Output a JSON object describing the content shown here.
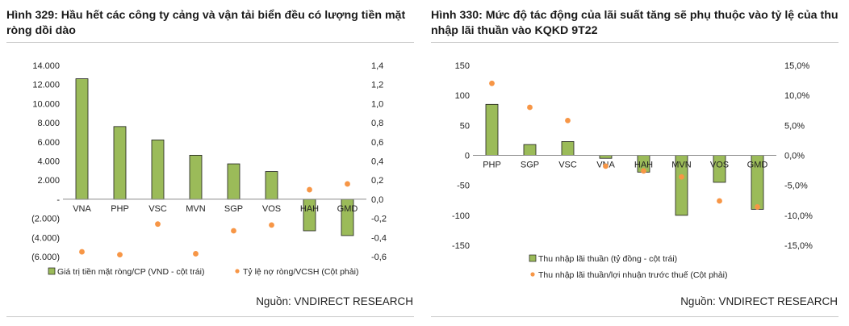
{
  "colors": {
    "bar_fill": "#9bbb59",
    "bar_stroke": "#1e1e1e",
    "dot": "#f79646",
    "axis": "#8c8c8c",
    "text": "#222222"
  },
  "figures": {
    "left": {
      "title": "Hình 329: Hầu hết các công ty cảng và vận tải biển đều có lượng tiền mặt ròng dồi dào",
      "source": "Nguồn: VNDIRECT RESEARCH"
    },
    "right": {
      "title": "Hình 330: Mức độ tác động của lãi suất tăng sẽ phụ thuộc vào tỷ lệ của thu nhập lãi thuần vào KQKD 9T22",
      "source": "Nguồn: VNDIRECT RESEARCH"
    }
  },
  "chart_data": [
    {
      "type": "bar",
      "categories": [
        "VNA",
        "PHP",
        "VSC",
        "MVN",
        "SGP",
        "VOS",
        "HAH",
        "GMD"
      ],
      "series": [
        {
          "name": "Giá trị tiền mặt ròng/CP (VND - cột trái)",
          "kind": "bar",
          "axis": "left",
          "values": [
            12600,
            7600,
            6200,
            4600,
            3700,
            2900,
            -3300,
            -3800
          ]
        },
        {
          "name": "Tỷ lệ nợ ròng/VCSH (Cột phải)",
          "kind": "dot",
          "axis": "right",
          "values": [
            -0.55,
            -0.58,
            -0.26,
            -0.57,
            -0.33,
            -0.27,
            0.1,
            0.16
          ]
        }
      ],
      "left_axis": {
        "min": -6000,
        "max": 14000,
        "ticks": [
          14000,
          12000,
          10000,
          8000,
          6000,
          4000,
          2000,
          0,
          -2000,
          -4000,
          -6000
        ],
        "tick_labels": [
          "14.000",
          "12.000",
          "10.000",
          "8.000",
          "6.000",
          "4.000",
          "2.000",
          "-",
          "(2.000)",
          "(4.000)",
          "(6.000)"
        ]
      },
      "right_axis": {
        "min": -0.6,
        "max": 1.4,
        "ticks": [
          1.4,
          1.2,
          1.0,
          0.8,
          0.6,
          0.4,
          0.2,
          0.0,
          -0.2,
          -0.4,
          -0.6
        ],
        "tick_labels": [
          "1,4",
          "1,2",
          "1,0",
          "0,8",
          "0,6",
          "0,4",
          "0,2",
          "0,0",
          "-0,2",
          "-0,4",
          "-0,6"
        ]
      },
      "legend_position": "bottom-left",
      "title": "",
      "xlabel": "",
      "ylabel": ""
    },
    {
      "type": "bar",
      "categories": [
        "PHP",
        "SGP",
        "VSC",
        "VNA",
        "HAH",
        "MVN",
        "VOS",
        "GMD"
      ],
      "series": [
        {
          "name": "Thu nhập lãi thuần (tỷ đồng - cột trái)",
          "kind": "bar",
          "axis": "left",
          "values": [
            85,
            18,
            23,
            -5,
            -28,
            -100,
            -45,
            -90
          ]
        },
        {
          "name": "Thu nhập lãi thuần/lợi nhuận trước thuế (Cột phải)",
          "kind": "dot",
          "axis": "right",
          "values": [
            12.0,
            8.0,
            5.8,
            -1.8,
            -2.6,
            -3.6,
            -7.6,
            -8.6
          ]
        }
      ],
      "left_axis": {
        "min": -150,
        "max": 150,
        "ticks": [
          150,
          100,
          50,
          0,
          -50,
          -100,
          -150
        ],
        "tick_labels": [
          "150",
          "100",
          "50",
          "0",
          "-50",
          "-100",
          "-150"
        ]
      },
      "right_axis": {
        "min": -15,
        "max": 15,
        "ticks": [
          15,
          10,
          5,
          0,
          -5,
          -10,
          -15
        ],
        "tick_labels": [
          "15,0%",
          "10,0%",
          "5,0%",
          "0,0%",
          "-5,0%",
          "-10,0%",
          "-15,0%"
        ]
      },
      "legend_position": "bottom-center",
      "title": "",
      "xlabel": "",
      "ylabel": ""
    }
  ]
}
